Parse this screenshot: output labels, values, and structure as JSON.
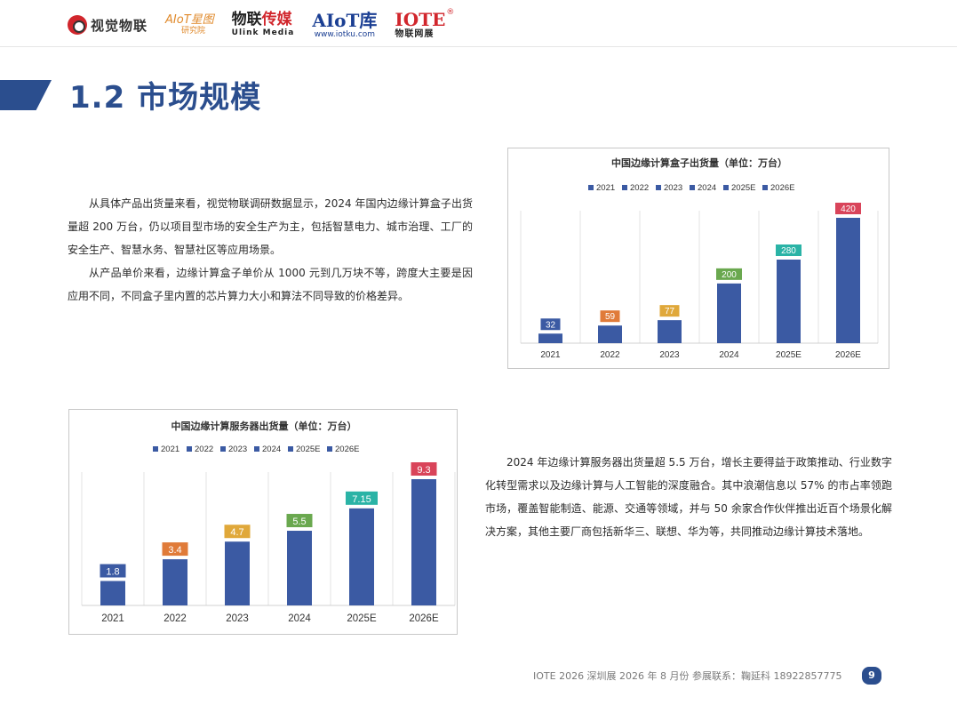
{
  "header": {
    "logo1": "视觉物联",
    "logo2_line1": "AIoT星图",
    "logo2_line2": "研究院",
    "logo3_line1a": "物联",
    "logo3_line1b": "传媒",
    "logo3_line2": "Ulink Media",
    "logo4_line1": "AIoT库",
    "logo4_line2": "www.iotku.com",
    "logo5_line1": "IOTE",
    "logo5_reg": "®",
    "logo5_line2": "物联网展"
  },
  "page_title": "1.2 市场规模",
  "paragraphs": {
    "p1": "从具体产品出货量来看，视觉物联调研数据显示，2024 年国内边缘计算盒子出货量超 200 万台，仍以项目型市场的安全生产为主，包括智慧电力、城市治理、工厂的安全生产、智慧水务、智慧社区等应用场景。",
    "p2": "从产品单价来看，边缘计算盒子单价从 1000 元到几万块不等，跨度大主要是因应用不同，不同盒子里内置的芯片算力大小和算法不同导致的价格差异。",
    "p3": "2024 年边缘计算服务器出货量超 5.5 万台，增长主要得益于政策推动、行业数字化转型需求以及边缘计算与人工智能的深度融合。其中浪潮信息以 57% 的市占率领跑市场，覆盖智能制造、能源、交通等领域，并与 50 余家合作伙伴推出近百个场景化解决方案，其他主要厂商包括新华三、联想、华为等，共同推动边缘计算技术落地。"
  },
  "chart_data": [
    {
      "type": "bar",
      "title": "中国边缘计算盒子出货量（单位：万台）",
      "categories": [
        "2021",
        "2022",
        "2023",
        "2024",
        "2025E",
        "2026E"
      ],
      "values": [
        32,
        59,
        77,
        200,
        280,
        420
      ],
      "ylim": [
        0,
        420
      ],
      "bar_color": "#3b5aa3",
      "label_colors": [
        "#3b5aa3",
        "#e07b39",
        "#e0a83a",
        "#6aa84f",
        "#2ab3a6",
        "#d9445a"
      ],
      "legend": [
        "2021",
        "2022",
        "2023",
        "2024",
        "2025E",
        "2026E"
      ],
      "legend_position": "top",
      "grid": true
    },
    {
      "type": "bar",
      "title": "中国边缘计算服务器出货量（单位：万台）",
      "categories": [
        "2021",
        "2022",
        "2023",
        "2024",
        "2025E",
        "2026E"
      ],
      "values": [
        1.8,
        3.4,
        4.7,
        5.5,
        7.15,
        9.3
      ],
      "ylim": [
        0,
        9.3
      ],
      "bar_color": "#3b5aa3",
      "label_colors": [
        "#3b5aa3",
        "#e07b39",
        "#e0a83a",
        "#6aa84f",
        "#2ab3a6",
        "#d9445a"
      ],
      "legend": [
        "2021",
        "2022",
        "2023",
        "2024",
        "2025E",
        "2026E"
      ],
      "legend_position": "top",
      "grid": true
    }
  ],
  "footer": {
    "text": "IOTE 2026 深圳展 2026 年 8 月份  参展联系：鞠延科 18922857775",
    "page_number": "9"
  }
}
